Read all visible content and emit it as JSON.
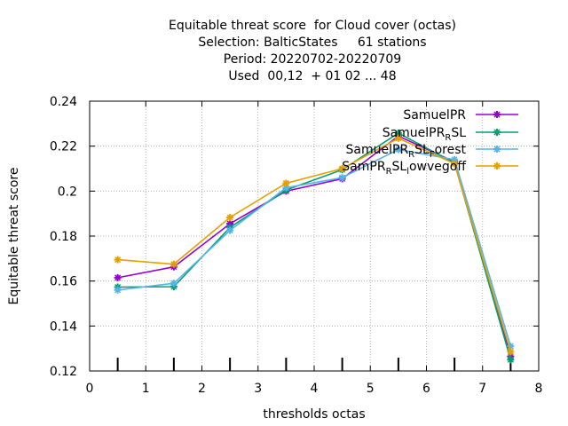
{
  "chart_data": {
    "type": "line",
    "title_lines": [
      "Equitable threat score  for Cloud cover (octas)",
      "Selection: BalticStates     61 stations",
      "Period: 20220702-20220709",
      "Used  00,12  + 01 02 ... 48"
    ],
    "xlabel": "thresholds octas",
    "ylabel": "Equitable threat score",
    "xlim": [
      0,
      8
    ],
    "ylim": [
      0.12,
      0.24
    ],
    "x_ticks": [
      0,
      1,
      2,
      3,
      4,
      5,
      6,
      7,
      8
    ],
    "y_ticks": [
      0.12,
      0.14,
      0.16,
      0.18,
      0.2,
      0.22,
      0.24
    ],
    "x_tick_labels": [
      "0",
      "1",
      "2",
      "3",
      "4",
      "5",
      "6",
      "7",
      "8"
    ],
    "y_tick_labels": [
      "0.12",
      "0.14",
      "0.16",
      "0.18",
      "0.2",
      "0.22",
      "0.24"
    ],
    "grid": true,
    "legend_position": "top-right",
    "x": [
      0.5,
      1.5,
      2.5,
      3.5,
      4.5,
      5.5,
      6.5,
      7.5
    ],
    "series": [
      {
        "name": "SamuelPR",
        "color": "#9400d3",
        "values": [
          0.1615,
          0.1663,
          0.1855,
          0.2,
          0.2055,
          0.2245,
          0.213,
          0.1265
        ]
      },
      {
        "name": "SamuelPR_RSL",
        "color": "#009e73",
        "values": [
          0.1573,
          0.1575,
          0.1838,
          0.2005,
          0.2095,
          0.2258,
          0.2125,
          0.125
        ]
      },
      {
        "name": "SamuelPR_RSL_Forest",
        "color": "#56b4e9",
        "values": [
          0.156,
          0.159,
          0.1825,
          0.2015,
          0.206,
          0.2185,
          0.214,
          0.131
        ]
      },
      {
        "name": "SamPR_RSL_lowvegoff",
        "color": "#e69f00",
        "values": [
          0.1695,
          0.1675,
          0.1883,
          0.2035,
          0.21,
          0.2235,
          0.2122,
          0.1285
        ]
      }
    ],
    "legend_labels": [
      {
        "base": "SamuelPR",
        "sub": "",
        "rest": ""
      },
      {
        "base": "SamuelPR",
        "sub": "R",
        "rest": "SL"
      },
      {
        "base": "SamuelPR",
        "sub": "R",
        "rest": "SL",
        "sub2": "F",
        "rest2": "orest"
      },
      {
        "base": "SamPR",
        "sub": "R",
        "rest": "SL",
        "sub2": "l",
        "rest2": "owvegoff"
      }
    ]
  }
}
